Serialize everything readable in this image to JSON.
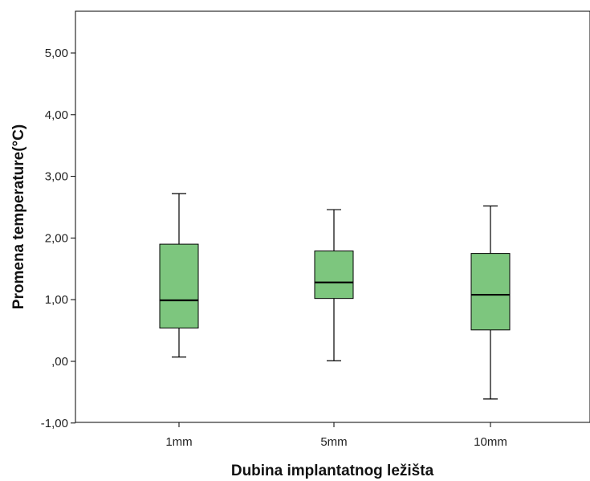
{
  "chart_data": {
    "type": "boxplot",
    "title": "",
    "xlabel": "Dubina implantatnog ležišta",
    "ylabel": "Promena temperature(°C)",
    "ylim": [
      -1.0,
      5.7
    ],
    "yticks": [
      -1.0,
      0.0,
      1.0,
      2.0,
      3.0,
      4.0,
      5.0
    ],
    "ytick_labels": [
      "-1,00",
      ",00",
      "1,00",
      "2,00",
      "3,00",
      "4,00",
      "5,00"
    ],
    "categories": [
      "1mm",
      "5mm",
      "10mm"
    ],
    "boxes": [
      {
        "category": "1mm",
        "min": 0.07,
        "q1": 0.54,
        "median": 0.99,
        "q3": 1.9,
        "max": 2.72
      },
      {
        "category": "5mm",
        "min": 0.01,
        "q1": 1.02,
        "median": 1.28,
        "q3": 1.79,
        "max": 2.46
      },
      {
        "category": "10mm",
        "min": -0.61,
        "q1": 0.51,
        "median": 1.08,
        "q3": 1.75,
        "max": 2.52
      }
    ],
    "grid": false,
    "legend": "none",
    "box_color": "#7dc67e",
    "line_color": "#000000"
  }
}
